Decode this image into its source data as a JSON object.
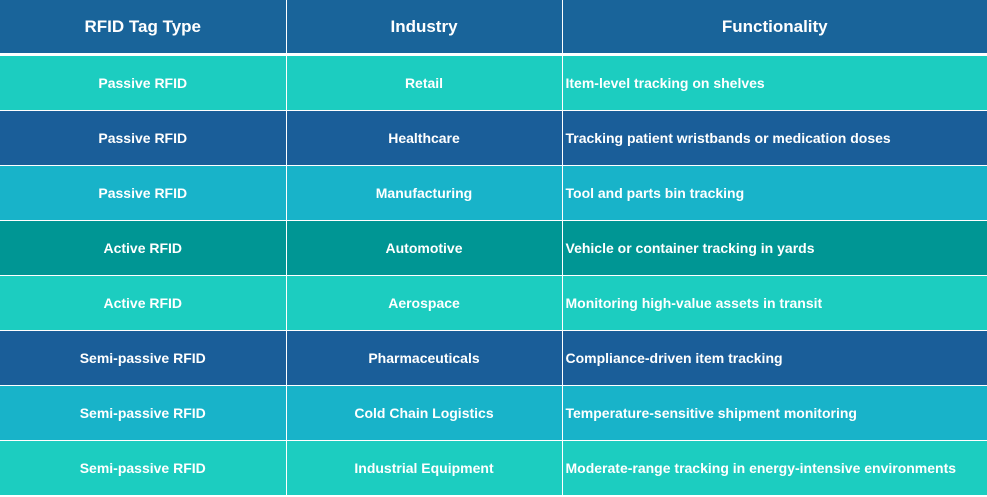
{
  "headers": [
    "RFID Tag Type",
    "Industry",
    "Functionality"
  ],
  "rows": [
    {
      "type": "Passive RFID",
      "industry": "Retail",
      "functionality": "Item-level tracking on shelves",
      "color": "#1ccdc0"
    },
    {
      "type": "Passive RFID",
      "industry": "Healthcare",
      "functionality": "Tracking patient wristbands or medication doses",
      "color": "#1a5e99"
    },
    {
      "type": "Passive RFID",
      "industry": "Manufacturing",
      "functionality": "Tool and parts bin tracking",
      "color": "#18b3c9"
    },
    {
      "type": "Active RFID",
      "industry": "Automotive",
      "functionality": "Vehicle or container tracking in yards",
      "color": "#009694"
    },
    {
      "type": "Active RFID",
      "industry": "Aerospace",
      "functionality": "Monitoring high-value assets in transit",
      "color": "#1ccdc0"
    },
    {
      "type": "Semi-passive RFID",
      "industry": "Pharmaceuticals",
      "functionality": "Compliance-driven item tracking",
      "color": "#1a5e99"
    },
    {
      "type": "Semi-passive RFID",
      "industry": "Cold Chain Logistics",
      "functionality": "Temperature-sensitive shipment monitoring",
      "color": "#18b3c9"
    },
    {
      "type": "Semi-passive RFID",
      "industry": "Industrial Equipment",
      "functionality": "Moderate-range tracking in energy-intensive environments",
      "color": "#1ccdc0"
    }
  ],
  "colors": {
    "header": "#19649a"
  }
}
